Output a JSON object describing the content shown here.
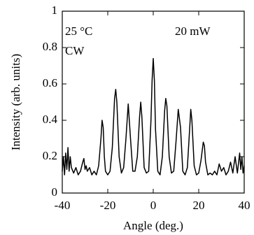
{
  "chart_data": {
    "type": "line",
    "xlabel": "Angle (deg.)",
    "ylabel": "Intensity (arb. units)",
    "annotations": [
      "25 °C",
      "CW",
      "20 mW"
    ],
    "x": [
      -40,
      -39.5,
      -39,
      -38.5,
      -38,
      -37.5,
      -37,
      -36.5,
      -36,
      -35,
      -34,
      -33,
      -32,
      -31,
      -30.5,
      -30,
      -29.5,
      -29,
      -28,
      -27,
      -26,
      -25,
      -24,
      -23,
      -22.5,
      -22,
      -21.5,
      -21,
      -20,
      -19,
      -18,
      -17,
      -16.5,
      -16,
      -15,
      -14,
      -13,
      -12,
      -11,
      -10,
      -9,
      -8,
      -7,
      -6,
      -5.5,
      -5,
      -4,
      -3,
      -2,
      -1,
      -0.5,
      0,
      0.5,
      1,
      2,
      3,
      4,
      5,
      5.5,
      6,
      7,
      8,
      9,
      10,
      11,
      12,
      13,
      14,
      15,
      16,
      16.5,
      17,
      18,
      19,
      20,
      21,
      22,
      22.5,
      23,
      24,
      25,
      26,
      27,
      28,
      29,
      30,
      31,
      32,
      33,
      34,
      35,
      36,
      37,
      38,
      38.5,
      39,
      39.5,
      40
    ],
    "series": [
      {
        "color": "#000000",
        "values": [
          0.12,
          0.2,
          0.1,
          0.22,
          0.13,
          0.25,
          0.12,
          0.2,
          0.14,
          0.11,
          0.14,
          0.1,
          0.12,
          0.17,
          0.19,
          0.13,
          0.15,
          0.12,
          0.14,
          0.1,
          0.12,
          0.1,
          0.15,
          0.3,
          0.4,
          0.36,
          0.2,
          0.12,
          0.1,
          0.12,
          0.25,
          0.52,
          0.57,
          0.5,
          0.2,
          0.11,
          0.14,
          0.3,
          0.49,
          0.3,
          0.12,
          0.12,
          0.2,
          0.42,
          0.5,
          0.42,
          0.14,
          0.11,
          0.12,
          0.4,
          0.62,
          0.74,
          0.62,
          0.35,
          0.12,
          0.1,
          0.2,
          0.45,
          0.52,
          0.48,
          0.2,
          0.11,
          0.12,
          0.28,
          0.46,
          0.36,
          0.12,
          0.1,
          0.14,
          0.35,
          0.46,
          0.4,
          0.15,
          0.1,
          0.11,
          0.18,
          0.28,
          0.26,
          0.17,
          0.1,
          0.11,
          0.1,
          0.12,
          0.1,
          0.16,
          0.12,
          0.14,
          0.1,
          0.12,
          0.17,
          0.11,
          0.2,
          0.11,
          0.22,
          0.13,
          0.2,
          0.11,
          0.15
        ]
      }
    ],
    "xlim": [
      -40,
      40
    ],
    "xticks": [
      -40,
      -20,
      0,
      20,
      40
    ],
    "ylim": [
      0,
      1
    ],
    "yticks": [
      0,
      0.2,
      0.4,
      0.6,
      0.8,
      1
    ],
    "grid": false
  }
}
